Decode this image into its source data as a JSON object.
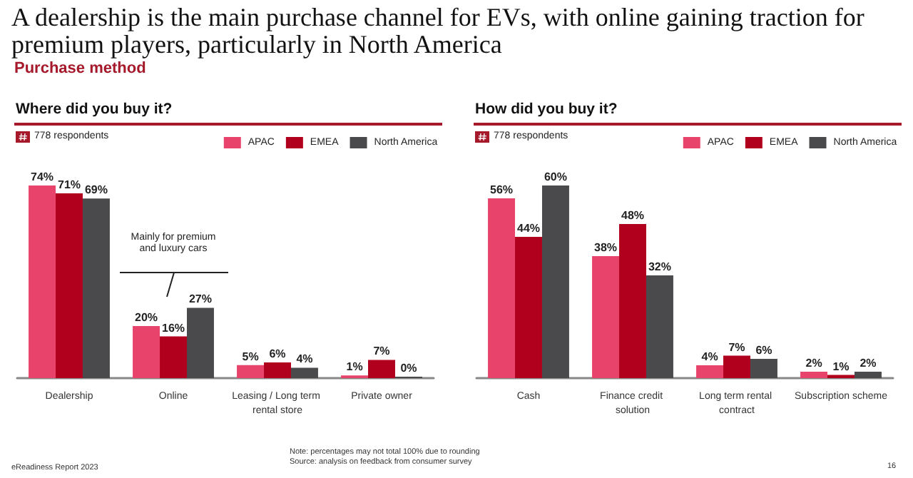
{
  "chart_data": [
    {
      "type": "bar",
      "title": "Where did you buy it?",
      "categories": [
        "Dealership",
        "Online",
        "Leasing / Long term rental store",
        "Private owner"
      ],
      "series": [
        {
          "name": "APAC",
          "color": "#e8436a",
          "values": [
            74,
            20,
            5,
            1
          ],
          "value_labels": [
            "74%",
            "20%",
            "5%",
            "1%"
          ]
        },
        {
          "name": "EMEA",
          "color": "#b0001e",
          "values": [
            71,
            16,
            6,
            7
          ],
          "value_labels": [
            "71%",
            "16%",
            "6%",
            "7%"
          ]
        },
        {
          "name": "North America",
          "color": "#4a4a4c",
          "values": [
            69,
            27,
            4,
            0
          ],
          "value_labels": [
            "69%",
            "27%",
            "4%",
            "0%"
          ]
        }
      ],
      "legend": "top right",
      "annotations": [
        "A dealership is the main purchase channel for EVs, with online gaining traction for premium players, particularly in North America",
        "Purchase method",
        "778 respondents",
        "Mainly for premium and luxury cars",
        "eReadiness Report 2023",
        "Note: percentages may not total 100% due to rounding",
        "Source: analysis on feedback from consumer survey"
      ]
    },
    {
      "type": "bar",
      "title": "How did you buy it?",
      "categories": [
        "Cash",
        "Finance credit solution",
        "Long term rental contract",
        "Subscription scheme"
      ],
      "series": [
        {
          "name": "APAC",
          "color": "#e8436a",
          "values": [
            56,
            38,
            4,
            2
          ],
          "value_labels": [
            "56%",
            "38%",
            "4%",
            "2%"
          ]
        },
        {
          "name": "EMEA",
          "color": "#b0001e",
          "values": [
            44,
            48,
            7,
            1
          ],
          "value_labels": [
            "44%",
            "48%",
            "7%",
            "1%"
          ]
        },
        {
          "name": "North America",
          "color": "#4a4a4c",
          "values": [
            60,
            32,
            6,
            2
          ],
          "value_labels": [
            "60%",
            "32%",
            "6%",
            "2%"
          ]
        }
      ],
      "legend": "top right",
      "annotations": [
        "778 respondents",
        "16"
      ]
    }
  ]
}
